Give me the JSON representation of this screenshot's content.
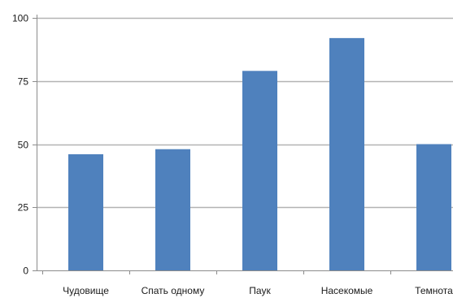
{
  "colors": {
    "bar": "#4f81bd",
    "grid": "#b3b3b3",
    "axis": "#8c8c8c",
    "text": "#1a1a1a"
  },
  "chart_data": {
    "type": "bar",
    "categories": [
      "Чудовище",
      "Спать одному",
      "Паук",
      "Насекомые",
      "Темнота"
    ],
    "values": [
      46,
      48,
      79,
      92,
      50
    ],
    "title": "",
    "xlabel": "",
    "ylabel": "",
    "ylim": [
      0,
      100
    ],
    "yticks": [
      0,
      25,
      50,
      75,
      100
    ],
    "ytick_labels": [
      "0",
      "25",
      "50",
      "75",
      "100"
    ],
    "grid": true,
    "legend": "none"
  }
}
